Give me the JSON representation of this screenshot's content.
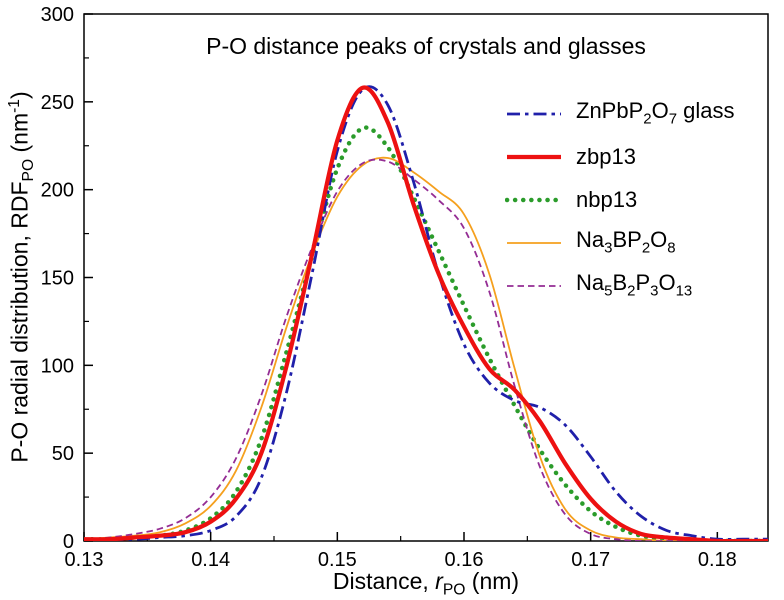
{
  "title": "P-O distance peaks of crystals and glasses",
  "axes": {
    "x": {
      "label_prefix": "Distance, ",
      "label_var": "r",
      "label_sub": "PO",
      "label_suffix": " (nm)",
      "min": 0.13,
      "max": 0.184,
      "major_ticks": [
        0.13,
        0.14,
        0.15,
        0.16,
        0.17,
        0.18
      ],
      "tick_labels": [
        "0.13",
        "0.14",
        "0.15",
        "0.16",
        "0.17",
        "0.18"
      ],
      "minor_ticks": [
        0.135,
        0.145,
        0.155,
        0.165,
        0.175
      ]
    },
    "y": {
      "label_prefix": "P-O radial distribution, RDF",
      "label_sub": "PO",
      "label_open": " (nm",
      "label_sup": "-1",
      "label_close": ")",
      "min": 0,
      "max": 300,
      "major_ticks": [
        0,
        50,
        100,
        150,
        200,
        250,
        300
      ],
      "tick_labels": [
        "0",
        "50",
        "100",
        "150",
        "200",
        "250",
        "300"
      ],
      "minor_ticks": [
        25,
        75,
        125,
        175,
        225,
        275
      ]
    }
  },
  "legend": {
    "position": "upper-right",
    "items": [
      {
        "id": "znpbp2o7-glass",
        "parts": [
          [
            "t",
            "ZnPbP"
          ],
          [
            "s",
            "2"
          ],
          [
            "t",
            "O"
          ],
          [
            "s",
            "7"
          ],
          [
            "t",
            " glass"
          ]
        ]
      },
      {
        "id": "zbp13",
        "parts": [
          [
            "t",
            "zbp13"
          ]
        ]
      },
      {
        "id": "nbp13",
        "parts": [
          [
            "t",
            "nbp13"
          ]
        ]
      },
      {
        "id": "na3bp2o8",
        "parts": [
          [
            "t",
            "Na"
          ],
          [
            "s",
            "3"
          ],
          [
            "t",
            "BP"
          ],
          [
            "s",
            "2"
          ],
          [
            "t",
            "O"
          ],
          [
            "s",
            "8"
          ]
        ]
      },
      {
        "id": "na5b2p3o13",
        "parts": [
          [
            "t",
            "Na"
          ],
          [
            "s",
            "5"
          ],
          [
            "t",
            "B"
          ],
          [
            "s",
            "2"
          ],
          [
            "t",
            "P"
          ],
          [
            "s",
            "3"
          ],
          [
            "t",
            "O"
          ],
          [
            "s",
            "13"
          ]
        ]
      }
    ]
  },
  "chart_data": {
    "type": "line",
    "title": "P-O distance peaks of crystals and glasses",
    "xlabel": "Distance, r_PO (nm)",
    "ylabel": "P-O radial distribution, RDF_PO (nm^-1)",
    "xlim": [
      0.13,
      0.184
    ],
    "ylim": [
      0,
      300
    ],
    "grid": false,
    "legend_position": "upper-right",
    "x": [
      0.13,
      0.132,
      0.134,
      0.136,
      0.138,
      0.14,
      0.142,
      0.144,
      0.146,
      0.148,
      0.15,
      0.152,
      0.154,
      0.156,
      0.158,
      0.16,
      0.162,
      0.164,
      0.166,
      0.168,
      0.17,
      0.172,
      0.174,
      0.176,
      0.178,
      0.18,
      0.182,
      0.184
    ],
    "series": [
      {
        "name": "ZnPbP2O7 glass",
        "id": "znpbp2o7-glass",
        "color": "#2020aa",
        "dash": "dashdot",
        "width": 2.8,
        "values": [
          1,
          1,
          1,
          2,
          3,
          6,
          14,
          36,
          85,
          152,
          222,
          257,
          248,
          205,
          152,
          112,
          90,
          80,
          76,
          66,
          48,
          28,
          14,
          6,
          3,
          1,
          1,
          1
        ]
      },
      {
        "name": "zbp13",
        "id": "zbp13",
        "color": "#ed1111",
        "dash": "solid",
        "width": 4.2,
        "values": [
          1,
          1,
          2,
          3,
          5,
          11,
          24,
          50,
          100,
          163,
          228,
          258,
          238,
          192,
          152,
          122,
          98,
          86,
          68,
          44,
          24,
          11,
          4,
          2,
          1,
          0,
          0,
          0
        ]
      },
      {
        "name": "nbp13",
        "id": "nbp13",
        "color": "#2b9c2b",
        "dash": "dotted",
        "width": 4.5,
        "values": [
          1,
          1,
          2,
          3,
          6,
          13,
          28,
          58,
          108,
          162,
          212,
          235,
          224,
          196,
          165,
          134,
          104,
          77,
          52,
          32,
          17,
          8,
          3,
          1,
          0,
          0,
          0,
          0
        ]
      },
      {
        "name": "Na3BP2O8",
        "id": "na3bp2o8",
        "color": "#f5a01e",
        "dash": "solid",
        "width": 1.8,
        "values": [
          1,
          2,
          3,
          5,
          10,
          20,
          40,
          76,
          122,
          163,
          196,
          214,
          218,
          210,
          199,
          186,
          152,
          98,
          48,
          18,
          6,
          2,
          1,
          0,
          0,
          0,
          0,
          0
        ]
      },
      {
        "name": "Na5B2P3O13",
        "id": "na5b2p3o13",
        "color": "#942d94",
        "dash": "dashed",
        "width": 1.8,
        "values": [
          1,
          2,
          4,
          7,
          13,
          25,
          47,
          83,
          128,
          167,
          199,
          215,
          216,
          206,
          194,
          178,
          142,
          88,
          42,
          15,
          4,
          1,
          0,
          0,
          0,
          0,
          0,
          0
        ]
      }
    ]
  }
}
